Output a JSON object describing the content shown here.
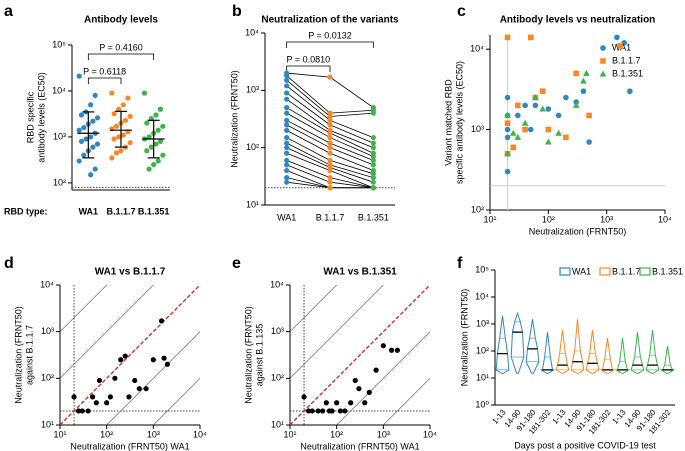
{
  "chart_data": [
    {
      "type": "strip",
      "panel": "a",
      "title": "Antibody levels",
      "ylabel": [
        "RBD specific",
        "antibody levels (EC50)"
      ],
      "xlabel": "RBD type:",
      "ylog": true,
      "ylim": [
        70,
        100000
      ],
      "yticks": [
        {
          "value": 100,
          "label": "10²"
        },
        {
          "value": 1000,
          "label": "10³"
        },
        {
          "value": 10000,
          "label": "10⁴"
        },
        {
          "value": 100000,
          "label": "10⁵"
        }
      ],
      "ythreshold": 80,
      "annotations": [
        "P = 0.6118",
        "P = 0.4160"
      ],
      "series": [
        {
          "name": "WA1",
          "color": "#2f86c4",
          "values": [
            21000,
            8000,
            5000,
            3500,
            3000,
            2600,
            2200,
            1900,
            1600,
            1400,
            1200,
            1000,
            900,
            800,
            700,
            600,
            500,
            400,
            300,
            200,
            150
          ],
          "center": 1200,
          "lower": 350,
          "upper": 3500
        },
        {
          "name": "B.1.1.7",
          "color": "#f5892a",
          "values": [
            9000,
            7000,
            5000,
            4000,
            3200,
            2800,
            2300,
            2000,
            1700,
            1500,
            1300,
            1100,
            1000,
            900,
            750,
            600,
            500,
            450,
            350
          ],
          "center": 1400,
          "lower": 600,
          "upper": 3600
        },
        {
          "name": "B.1.351",
          "color": "#3db34a",
          "values": [
            9000,
            4000,
            3000,
            2500,
            2000,
            1700,
            1400,
            1200,
            1000,
            900,
            800,
            700,
            600,
            500,
            400,
            300,
            250,
            200
          ],
          "center": 900,
          "lower": 350,
          "upper": 2300
        }
      ]
    },
    {
      "type": "paired",
      "panel": "b",
      "title": "Neutralization of the variants",
      "ylabel": [
        "Neutralization (FRNT50)"
      ],
      "ylog": true,
      "ylim": [
        10,
        10000
      ],
      "yticks": [
        {
          "value": 10,
          "label": "10¹"
        },
        {
          "value": 100,
          "label": "10²"
        },
        {
          "value": 1000,
          "label": "10³"
        },
        {
          "value": 10000,
          "label": "10⁴"
        }
      ],
      "ythreshold": 20,
      "annotations": [
        "P = 0.0810",
        "P = 0.0132"
      ],
      "series": [
        {
          "name": "WA1",
          "color": "#2f86c4",
          "values": [
            2000,
            1800,
            1500,
            1200,
            900,
            700,
            500,
            400,
            300,
            250,
            200,
            150,
            120,
            100,
            80,
            60,
            50,
            40,
            30,
            25
          ]
        },
        {
          "name": "B.1.1.7",
          "color": "#f5892a",
          "values": [
            1700,
            400,
            350,
            300,
            250,
            200,
            180,
            150,
            120,
            100,
            80,
            60,
            50,
            45,
            40,
            30,
            25,
            20,
            20,
            20
          ]
        },
        {
          "name": "B.1.351",
          "color": "#3db34a",
          "values": [
            500,
            450,
            400,
            150,
            120,
            100,
            80,
            70,
            60,
            50,
            40,
            35,
            30,
            25,
            20,
            20,
            20,
            20,
            20,
            20
          ]
        }
      ]
    },
    {
      "type": "scatter",
      "panel": "c",
      "title": "Antibody levels vs neutralization",
      "ylabel": [
        "Variant matched RBD",
        "specific antibody levels (EC50)"
      ],
      "xlabel": "Neutralization (FRNT50)",
      "xlog": true,
      "ylog": true,
      "xlim": [
        10,
        10000
      ],
      "ylim": [
        100,
        15000
      ],
      "xticks": [
        {
          "value": 10,
          "label": "10¹"
        },
        {
          "value": 100,
          "label": "10²"
        },
        {
          "value": 1000,
          "label": "10³"
        },
        {
          "value": 10000,
          "label": "10⁴"
        }
      ],
      "yticks": [
        {
          "value": 100,
          "label": "10²"
        },
        {
          "value": 1000,
          "label": "10³"
        },
        {
          "value": 10000,
          "label": "10⁴"
        }
      ],
      "xthreshold": 20,
      "ythreshold": 200,
      "legend": "top-right",
      "series": [
        {
          "name": "WA1",
          "color": "#2f86c4",
          "marker": "circle",
          "x": [
            20,
            20,
            20,
            20,
            20,
            20,
            25,
            30,
            40,
            50,
            60,
            80,
            100,
            150,
            200,
            300,
            400,
            500,
            1500,
            2000,
            2500
          ],
          "y": [
            300,
            500,
            800,
            1000,
            1500,
            2500,
            600,
            1500,
            2000,
            1000,
            2000,
            3000,
            1800,
            1500,
            2500,
            2200,
            3000,
            700,
            14000,
            12000,
            3000
          ]
        },
        {
          "name": "B.1.1.7",
          "color": "#f5892a",
          "marker": "square",
          "x": [
            20,
            20,
            20,
            25,
            30,
            40,
            50,
            60,
            80,
            100,
            200,
            300,
            500,
            1700
          ],
          "y": [
            14000,
            1200,
            500,
            600,
            2000,
            1000,
            14000,
            2500,
            3000,
            1000,
            800,
            5000,
            1500,
            11000
          ]
        },
        {
          "name": "B.1.351",
          "color": "#3db34a",
          "marker": "triangle",
          "x": [
            20,
            20,
            25,
            30,
            40,
            60,
            80,
            100,
            150,
            300,
            400,
            450
          ],
          "y": [
            1500,
            500,
            900,
            800,
            1200,
            2500,
            1800,
            700,
            900,
            2000,
            4000,
            5000
          ]
        }
      ]
    },
    {
      "type": "scatter",
      "panel": "d",
      "title": "WA1 vs B.1.1.7",
      "ylabel": [
        "Neutralization (FRNT50)",
        "against B.1.1.7"
      ],
      "xlabel": "Neutralization (FRNT50) WA1",
      "xlog": true,
      "ylog": true,
      "xlim": [
        10,
        10000
      ],
      "ylim": [
        10,
        10000
      ],
      "xticks": [
        {
          "value": 10,
          "label": "10¹"
        },
        {
          "value": 100,
          "label": "10²"
        },
        {
          "value": 1000,
          "label": "10³"
        },
        {
          "value": 10000,
          "label": "10⁴"
        }
      ],
      "yticks": [
        {
          "value": 10,
          "label": "10¹"
        },
        {
          "value": 100,
          "label": "10²"
        },
        {
          "value": 1000,
          "label": "10³"
        },
        {
          "value": 10000,
          "label": "10⁴"
        }
      ],
      "xthreshold": 20,
      "ythreshold": 20,
      "diagonal": true,
      "color": "#000000",
      "x": [
        20,
        25,
        30,
        40,
        50,
        60,
        70,
        100,
        120,
        150,
        200,
        250,
        300,
        400,
        500,
        700,
        1000,
        1500,
        2000,
        1700
      ],
      "y": [
        40,
        20,
        20,
        20,
        40,
        30,
        90,
        30,
        40,
        100,
        250,
        300,
        40,
        90,
        60,
        60,
        250,
        1700,
        200,
        270
      ]
    },
    {
      "type": "scatter",
      "panel": "e",
      "title": "WA1 vs B.1.351",
      "ylabel": [
        "Neutralization (FRNT50)",
        "against B.1.135"
      ],
      "xlabel": "Neutralization (FRNT50) WA1",
      "xlog": true,
      "ylog": true,
      "xlim": [
        10,
        10000
      ],
      "ylim": [
        10,
        10000
      ],
      "xticks": [
        {
          "value": 10,
          "label": "10¹"
        },
        {
          "value": 100,
          "label": "10²"
        },
        {
          "value": 1000,
          "label": "10³"
        },
        {
          "value": 10000,
          "label": "10⁴"
        }
      ],
      "yticks": [
        {
          "value": 10,
          "label": "10¹"
        },
        {
          "value": 100,
          "label": "10²"
        },
        {
          "value": 1000,
          "label": "10³"
        },
        {
          "value": 10000,
          "label": "10⁴"
        }
      ],
      "xthreshold": 20,
      "ythreshold": 20,
      "diagonal": true,
      "color": "#000000",
      "x": [
        20,
        25,
        30,
        40,
        50,
        60,
        70,
        80,
        100,
        120,
        150,
        200,
        250,
        300,
        400,
        500,
        700,
        1000,
        1500,
        2000
      ],
      "y": [
        40,
        20,
        20,
        20,
        20,
        30,
        20,
        20,
        30,
        20,
        20,
        30,
        90,
        60,
        30,
        50,
        150,
        500,
        400,
        400
      ]
    },
    {
      "type": "violin",
      "panel": "f",
      "ylabel": [
        "Neutralization (FRNT50)"
      ],
      "xlabel": "Days post a positive COVID-19 test",
      "ylog": true,
      "ylim": [
        1,
        100000
      ],
      "yticks": [
        {
          "value": 1,
          "label": "10⁰"
        },
        {
          "value": 10,
          "label": "10¹"
        },
        {
          "value": 100,
          "label": "10²"
        },
        {
          "value": 1000,
          "label": "10³"
        },
        {
          "value": 10000,
          "label": "10⁴"
        },
        {
          "value": 100000,
          "label": "10⁵"
        }
      ],
      "categories": [
        "1-13",
        "14-90",
        "91-180",
        "181-302"
      ],
      "legend": "top",
      "series": [
        {
          "name": "WA1",
          "color": "#2f86c4",
          "stats": [
            [
              15,
              20,
              80,
              300,
              2000
            ],
            [
              15,
              60,
              500,
              1200,
              2500
            ],
            [
              15,
              40,
              120,
              300,
              1500
            ],
            [
              15,
              20,
              20,
              60,
              500
            ]
          ]
        },
        {
          "name": "B.1.1.7",
          "color": "#f5892a",
          "stats": [
            [
              15,
              20,
              30,
              80,
              600
            ],
            [
              15,
              20,
              40,
              100,
              1500
            ],
            [
              15,
              20,
              35,
              80,
              600
            ],
            [
              15,
              20,
              20,
              50,
              300
            ]
          ]
        },
        {
          "name": "B.1.351",
          "color": "#3db34a",
          "stats": [
            [
              15,
              20,
              20,
              40,
              300
            ],
            [
              15,
              20,
              30,
              60,
              500
            ],
            [
              15,
              20,
              30,
              70,
              600
            ],
            [
              15,
              20,
              20,
              30,
              150
            ]
          ]
        }
      ]
    }
  ]
}
